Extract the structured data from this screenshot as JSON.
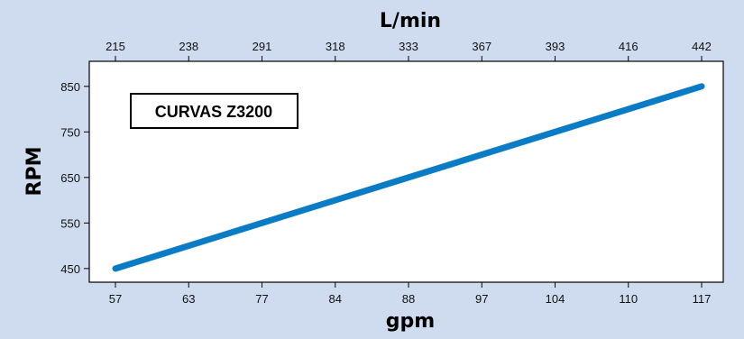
{
  "colors": {
    "background": "#cfdcef",
    "plot_area": "#ffffff",
    "line": "#0a7cc6"
  },
  "chart_data": {
    "type": "line",
    "title_box": "CURVAS Z3200",
    "x_bottom_label": "gpm",
    "x_top_label": "L/min",
    "ylabel": "RPM",
    "categories_bottom": [
      "57",
      "63",
      "77",
      "84",
      "88",
      "97",
      "104",
      "110",
      "117"
    ],
    "categories_top": [
      "215",
      "238",
      "291",
      "318",
      "333",
      "367",
      "393",
      "416",
      "442"
    ],
    "yticks": [
      450,
      550,
      650,
      750,
      850
    ],
    "ylim": [
      420,
      905
    ],
    "series": [
      {
        "x_index": [
          0,
          8
        ],
        "values": [
          450,
          850
        ]
      }
    ],
    "grid": false
  }
}
